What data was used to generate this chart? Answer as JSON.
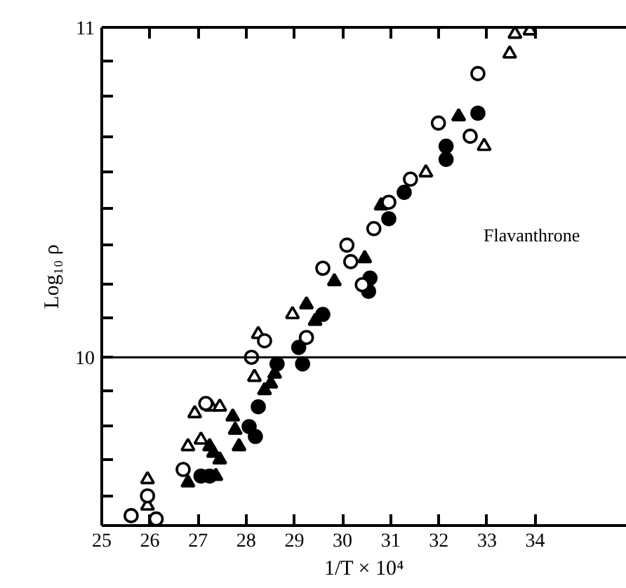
{
  "chart_data": {
    "type": "scatter",
    "xlabel": "1/T × 10⁴",
    "ylabel": "Log₁₀ ρ",
    "xlim": [
      25,
      35.9
    ],
    "ylim": [
      9.49,
      11
    ],
    "xticks": [
      25,
      26,
      27,
      28,
      29,
      30,
      31,
      32,
      33,
      34
    ],
    "yticks": [
      {
        "value": 9.58,
        "label": null
      },
      {
        "value": 9.69,
        "label": null
      },
      {
        "value": 9.79,
        "label": null
      },
      {
        "value": 9.9,
        "label": null
      },
      10,
      {
        "value": 10.12,
        "label": null
      },
      {
        "value": 10.22,
        "label": null
      },
      {
        "value": 10.34,
        "label": null
      },
      {
        "value": 10.45,
        "label": null
      },
      {
        "value": 10.56,
        "label": null
      },
      {
        "value": 10.67,
        "label": null
      },
      {
        "value": 10.79,
        "label": null
      },
      {
        "value": 10.9,
        "label": null
      },
      11
    ],
    "grid": false,
    "ref_lines": [
      {
        "axis": "y",
        "value": 10,
        "color": "#000000"
      }
    ],
    "annotations": [
      "Flavanthrone"
    ],
    "series": [
      {
        "marker": "circle",
        "color": "#ffffff",
        "x": [
          32.81,
          31.99,
          32.65,
          31.41,
          30.96,
          30.65,
          30.09,
          29.59,
          30.17,
          30.41,
          29.25,
          28.38,
          28.11,
          27.16,
          26.69,
          25.95,
          25.61,
          26.13
        ],
        "values": [
          10.86,
          10.71,
          10.67,
          10.54,
          10.47,
          10.39,
          10.34,
          10.27,
          10.29,
          10.22,
          10.06,
          10.05,
          10.0,
          9.86,
          9.66,
          9.58,
          9.52,
          9.51
        ]
      },
      {
        "marker": "circle",
        "color": "#000000",
        "x": [
          32.81,
          32.15,
          32.15,
          31.28,
          30.96,
          30.57,
          30.54,
          29.59,
          29.09,
          29.17,
          28.64,
          28.25,
          28.06,
          28.19,
          27.06,
          27.24
        ],
        "values": [
          10.74,
          10.64,
          10.6,
          10.5,
          10.42,
          10.24,
          10.2,
          10.13,
          10.03,
          9.98,
          9.98,
          9.85,
          9.79,
          9.76,
          9.64,
          9.64
        ]
      },
      {
        "marker": "triangle",
        "color": "#ffffff",
        "x": [
          33.89,
          33.58,
          33.47,
          32.94,
          31.73,
          28.96,
          28.25,
          28.17,
          26.93,
          27.27,
          27.45,
          26.79,
          27.06,
          25.95,
          25.95
        ],
        "values": [
          10.99,
          10.98,
          10.92,
          10.64,
          10.56,
          10.13,
          10.07,
          9.94,
          9.83,
          9.85,
          9.85,
          9.73,
          9.75,
          9.63,
          9.55
        ]
      },
      {
        "marker": "triangle",
        "color": "#000000",
        "x": [
          32.41,
          30.8,
          29.83,
          30.46,
          29.25,
          29.43,
          28.59,
          28.51,
          28.38,
          27.85,
          27.72,
          27.77,
          27.24,
          27.32,
          27.45,
          26.79,
          27.37
        ],
        "values": [
          10.73,
          10.46,
          10.23,
          10.3,
          10.16,
          10.11,
          9.95,
          9.92,
          9.9,
          9.73,
          9.82,
          9.78,
          9.73,
          9.71,
          9.69,
          9.62,
          9.64
        ]
      }
    ]
  }
}
